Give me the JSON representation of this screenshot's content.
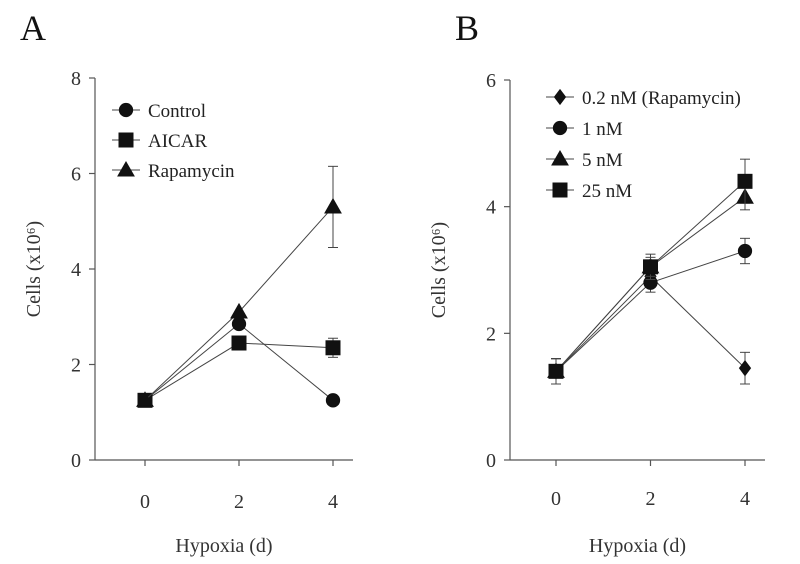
{
  "chart_data": [
    {
      "type": "line",
      "panel_label": "A",
      "xlabel": "Hypoxia (d)",
      "ylabel": "Cells (x10⁶)",
      "x": [
        0,
        2,
        4
      ],
      "xticks": [
        "0",
        "2",
        "4"
      ],
      "ylim": [
        0,
        8
      ],
      "yticks": [
        "0",
        "2",
        "4",
        "6",
        "8"
      ],
      "grid": false,
      "legend_position": "top-left",
      "series": [
        {
          "name": "Control",
          "marker": "circle",
          "values": [
            1.25,
            2.85,
            1.25
          ],
          "errors": [
            0,
            0,
            0
          ]
        },
        {
          "name": "AICAR",
          "marker": "square",
          "values": [
            1.25,
            2.45,
            2.35
          ],
          "errors": [
            0,
            0,
            0.2
          ]
        },
        {
          "name": "Rapamycin",
          "marker": "triangle",
          "values": [
            1.25,
            3.1,
            5.3
          ],
          "errors": [
            0,
            0,
            0.85
          ]
        }
      ]
    },
    {
      "type": "line",
      "panel_label": "B",
      "xlabel": "Hypoxia (d)",
      "ylabel": "Cells (x10⁶)",
      "x": [
        0,
        2,
        4
      ],
      "xticks": [
        "0",
        "2",
        "4"
      ],
      "ylim": [
        0,
        6
      ],
      "yticks": [
        "0",
        "2",
        "4",
        "6"
      ],
      "grid": false,
      "legend_position": "top-left",
      "series": [
        {
          "name": "0.2 nM (Rapamycin)",
          "marker": "diamond",
          "values": [
            1.4,
            2.9,
            1.45
          ],
          "errors": [
            0.2,
            0.15,
            0.25
          ]
        },
        {
          "name": "1 nM",
          "marker": "circle",
          "values": [
            1.4,
            2.8,
            3.3
          ],
          "errors": [
            0.2,
            0.15,
            0.2
          ]
        },
        {
          "name": "5 nM",
          "marker": "triangle",
          "values": [
            1.4,
            3.05,
            4.15
          ],
          "errors": [
            0.2,
            0.15,
            0.2
          ]
        },
        {
          "name": "25 nM",
          "marker": "square",
          "values": [
            1.4,
            3.05,
            4.4
          ],
          "errors": [
            0.2,
            0.2,
            0.35
          ]
        }
      ]
    }
  ]
}
